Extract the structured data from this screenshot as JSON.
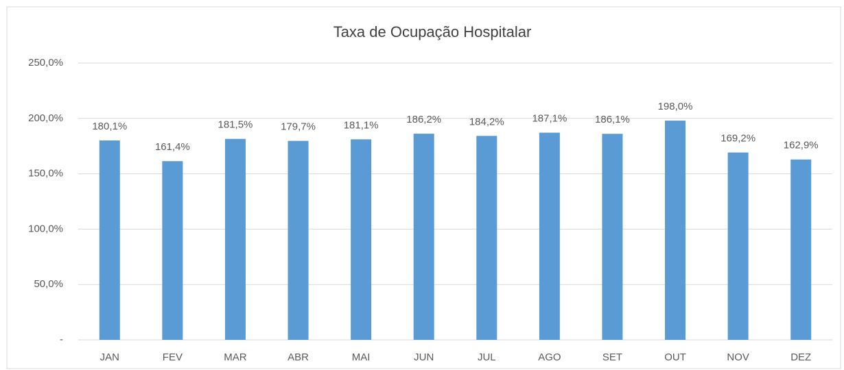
{
  "chart_data": {
    "type": "bar",
    "title": "Taxa de Ocupação Hospitalar",
    "categories": [
      "JAN",
      "FEV",
      "MAR",
      "ABR",
      "MAI",
      "JUN",
      "JUL",
      "AGO",
      "SET",
      "OUT",
      "NOV",
      "DEZ"
    ],
    "values": [
      180.1,
      161.4,
      181.5,
      179.7,
      181.1,
      186.2,
      184.2,
      187.1,
      186.1,
      198.0,
      169.2,
      162.9
    ],
    "value_labels": [
      "180,1%",
      "161,4%",
      "181,5%",
      "179,7%",
      "181,1%",
      "186,2%",
      "184,2%",
      "187,1%",
      "186,1%",
      "198,0%",
      "169,2%",
      "162,9%"
    ],
    "color": "#5b9bd5",
    "ylim": [
      0,
      250
    ],
    "yticks": [
      {
        "value": 0,
        "label": "-"
      },
      {
        "value": 50,
        "label": "50,0%"
      },
      {
        "value": 100,
        "label": "100,0%"
      },
      {
        "value": 150,
        "label": "150,0%"
      },
      {
        "value": 200,
        "label": "200,0%"
      },
      {
        "value": 250,
        "label": "250,0%"
      }
    ],
    "grid": true
  }
}
